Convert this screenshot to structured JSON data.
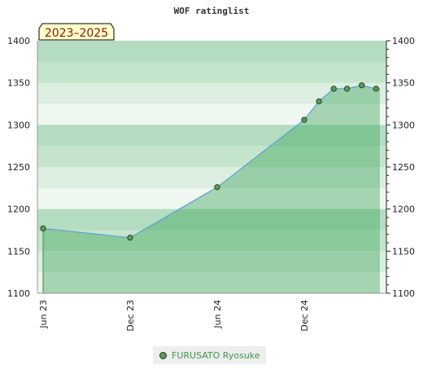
{
  "chart_data": {
    "type": "area",
    "title": "WOF ratinglist",
    "badge": "2023–2025",
    "ylim": [
      1100,
      1400
    ],
    "yticks": [
      1100,
      1150,
      1200,
      1250,
      1300,
      1350,
      1400
    ],
    "xticks": [
      {
        "label": "Jun 23",
        "date": "2023-06-01"
      },
      {
        "label": "Dec 23",
        "date": "2023-12-01"
      },
      {
        "label": "Jun 24",
        "date": "2024-06-01"
      },
      {
        "label": "Dec 24",
        "date": "2024-12-01"
      }
    ],
    "series": [
      {
        "name": "FURUSATO Ryosuke",
        "points": [
          {
            "x": "2023-06-01",
            "y": 1177
          },
          {
            "x": "2023-12-01",
            "y": 1166
          },
          {
            "x": "2024-06-01",
            "y": 1226
          },
          {
            "x": "2024-12-01",
            "y": 1306
          },
          {
            "x": "2025-01-01",
            "y": 1328
          },
          {
            "x": "2025-02-01",
            "y": 1343
          },
          {
            "x": "2025-03-01",
            "y": 1343
          },
          {
            "x": "2025-04-01",
            "y": 1347
          },
          {
            "x": "2025-05-01",
            "y": 1343
          }
        ]
      }
    ],
    "grid": true,
    "legend_position": "bottom-center",
    "colors": {
      "line": "#5aa0d8",
      "area": "#3da55a",
      "marker": "#5a9a5a",
      "badge_bg": "#ffffcc"
    }
  }
}
